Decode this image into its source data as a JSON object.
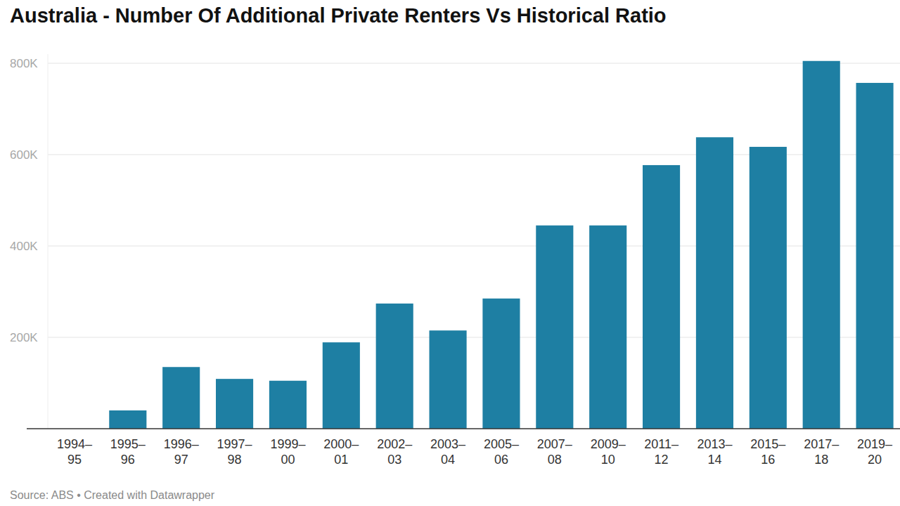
{
  "chart_data": {
    "type": "bar",
    "title": "Australia - Number Of Additional Private Renters Vs Historical Ratio",
    "source": "Source: ABS • Created with Datawrapper",
    "categories": [
      "1994–95",
      "1995–96",
      "1996–97",
      "1997–98",
      "1999–00",
      "2000–01",
      "2002–03",
      "2003–04",
      "2005–06",
      "2007–08",
      "2009–10",
      "2011–12",
      "2013–14",
      "2015–16",
      "2017–18",
      "2019–20"
    ],
    "values": [
      0,
      40000,
      135000,
      109000,
      105000,
      189000,
      274000,
      215000,
      285000,
      445000,
      445000,
      577000,
      638000,
      617000,
      805000,
      757000
    ],
    "color": "#1e7fa3",
    "ylim": [
      0,
      820000
    ],
    "yticks": [
      {
        "value": 200000,
        "label": "200K"
      },
      {
        "value": 400000,
        "label": "400K"
      },
      {
        "value": 600000,
        "label": "600K"
      },
      {
        "value": 800000,
        "label": "800K"
      }
    ],
    "grid": true
  }
}
